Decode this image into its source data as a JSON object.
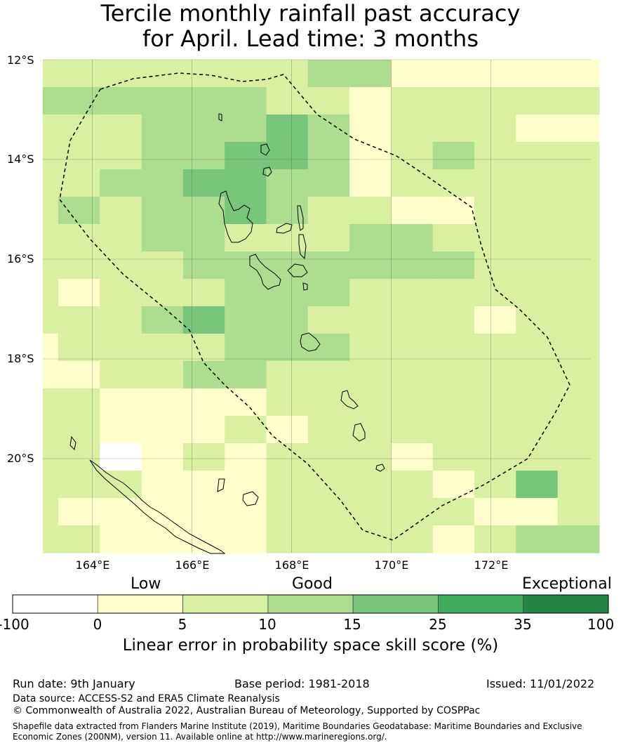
{
  "title_line1": "Tercile monthly rainfall past accuracy",
  "title_line2": "for April. Lead time: 3 months",
  "map": {
    "lat_labels": [
      "12°S",
      "14°S",
      "16°S",
      "18°S",
      "20°S"
    ],
    "lon_labels": [
      "164°E",
      "166°E",
      "168°E",
      "170°E",
      "172°E"
    ],
    "grid_class_rows": [
      "11111112200000",
      "22222211011111",
      "11122232011100",
      "11122332012111",
      "11223322011111",
      "12122321100111",
      "11122111221111",
      "11112222222111",
      "10111222111111",
      "11123221111011",
      "01111222111111",
      "00112211111111",
      "11000011111111",
      "11000101111111",
      "11a01011101111",
      "11100011110131",
      "10000011111001",
      "11000011110122"
    ]
  },
  "colorbar": {
    "category_labels": [
      "Low",
      "Good",
      "Exceptional"
    ],
    "ticks": [
      "-100",
      "0",
      "5",
      "10",
      "15",
      "25",
      "35",
      "100"
    ],
    "colors": [
      "#ffffff",
      "#ffffcc",
      "#d9f0a3",
      "#addd8e",
      "#78c679",
      "#41ab5d",
      "#238443"
    ],
    "label": "Linear error in probability space skill score (%)"
  },
  "footer": {
    "run_date": "Run date: 9th January",
    "base_period": "Base period: 1981-2018",
    "issued": "Issued: 11/01/2022",
    "data_source": "Data source: ACCESS-S2 and ERA5 Climate Reanalysis",
    "copyright": "© Commonwealth of Australia 2022, Australian Bureau of Meteorology, Supported by COSPPac",
    "shapefile_line1": "Shapefile data extracted from Flanders Marine Institute (2019), Maritime Boundaries Geodatabase: Maritime Boundaries and Exclusive",
    "shapefile_line2": "Economic Zones (200NM), version 11. Available online at http://www.marineregions.org/."
  }
}
